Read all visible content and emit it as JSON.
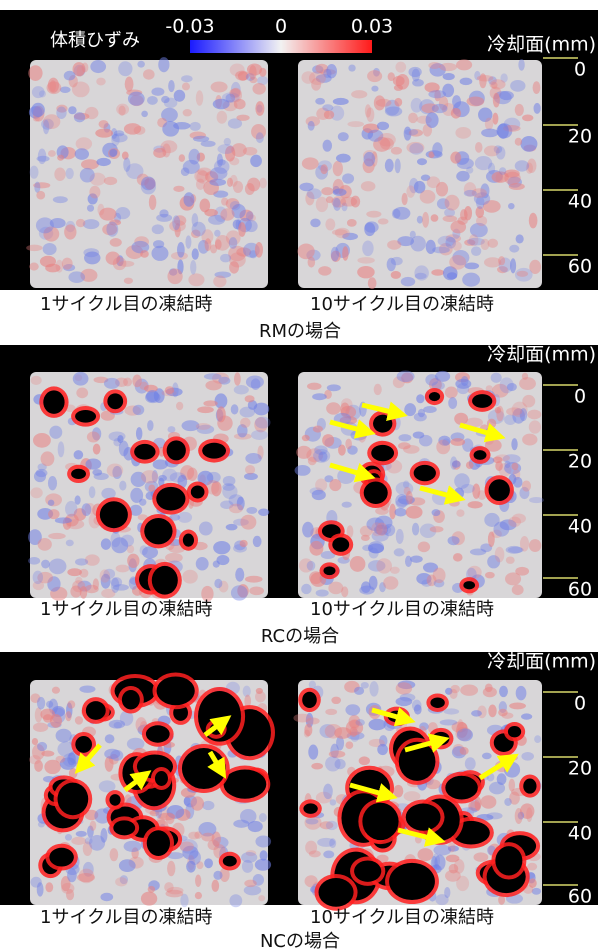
{
  "colorbar": {
    "label": "体積ひずみ",
    "ticks": [
      "-0.03",
      "0",
      "0.03"
    ]
  },
  "panels": [
    {
      "axis_label": "冷却面(mm)",
      "depth_ticks": [
        "0",
        "20",
        "40",
        "60"
      ],
      "captions": [
        "1サイクル目の凍結時",
        "10サイクル目の凍結時"
      ],
      "title": "RMの場合"
    },
    {
      "axis_label": "冷却面(mm)",
      "depth_ticks": [
        "0",
        "20",
        "40",
        "60"
      ],
      "captions": [
        "1サイクル目の凍結時",
        "10サイクル目の凍結時"
      ],
      "title": "RCの場合"
    },
    {
      "axis_label": "冷却面(mm)",
      "depth_ticks": [
        "0",
        "20",
        "40",
        "60"
      ],
      "captions": [
        "1サイクル目の凍結時",
        "10サイクル目の凍結時"
      ],
      "title": "NCの場合"
    }
  ]
}
